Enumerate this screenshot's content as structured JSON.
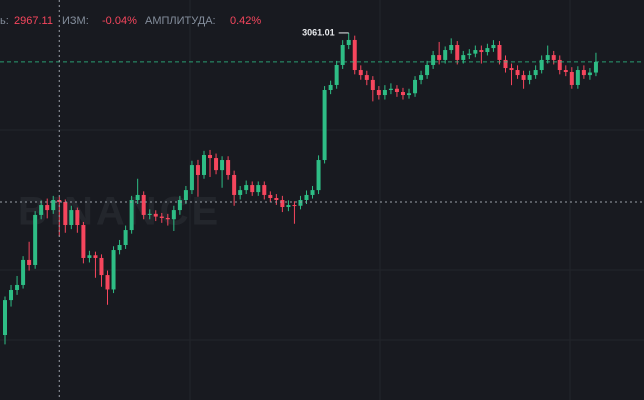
{
  "chart_data": {
    "type": "candlestick",
    "header": {
      "close_label": "ь:",
      "close": 2967.11,
      "change_label": "ИЗМ:",
      "change": "-0.04%",
      "amplitude_label": "АМПЛИТУДА:",
      "amplitude": "0.42%"
    },
    "watermark": "BINANCE",
    "up_color": "#2ebd85",
    "down_color": "#f6465d",
    "ylim": [
      2857.1,
      3079.3
    ],
    "open": [
      2893.2,
      2912.6,
      2918.2,
      2921.0,
      2934.9,
      2932.1,
      2959.9,
      2965.4,
      2962.6,
      2968.2,
      2967.1,
      2954.3,
      2962.6,
      2954.3,
      2936.0,
      2937.5,
      2936.0,
      2926.5,
      2918.5,
      2940.4,
      2943.2,
      2951.5,
      2968.2,
      2971.0,
      2959.9,
      2960.5,
      2959.0,
      2958.2,
      2957.5,
      2962.6,
      2968.2,
      2973.7,
      2987.6,
      2982.1,
      2993.2,
      2991.5,
      2984.8,
      2990.4,
      2982.1,
      2971.0,
      2973.7,
      2976.5,
      2972.6,
      2976.5,
      2971.0,
      2969.3,
      2968.2,
      2964.3,
      2965.4,
      2965.0,
      2968.2,
      2971.0,
      2973.7,
      2990.4,
      3029.3,
      3032.1,
      3043.2,
      3054.3,
      3057.1,
      3040.4,
      3037.6,
      3034.9,
      3029.3,
      3026.5,
      3029.3,
      3030.0,
      3028.2,
      3026.5,
      3027.5,
      3034.9,
      3037.6,
      3043.2,
      3048.7,
      3046.0,
      3051.5,
      3054.3,
      3046.0,
      3048.7,
      3049.5,
      3051.5,
      3050.4,
      3052.6,
      3054.3,
      3046.0,
      3041.5,
      3040.4,
      3037.6,
      3034.9,
      3037.6,
      3040.4,
      3046.0,
      3048.7,
      3046.0,
      3040.4,
      3039.3,
      3032.1,
      3040.4,
      3037.6,
      3039.0
    ],
    "close": [
      2912.6,
      2918.2,
      2921.0,
      2934.9,
      2932.1,
      2959.9,
      2965.4,
      2962.6,
      2968.2,
      2967.1,
      2954.3,
      2962.6,
      2954.3,
      2936.0,
      2937.5,
      2936.0,
      2926.5,
      2918.5,
      2940.4,
      2943.2,
      2951.5,
      2968.2,
      2971.0,
      2959.9,
      2960.5,
      2959.0,
      2958.2,
      2957.5,
      2962.6,
      2968.2,
      2973.7,
      2987.6,
      2982.1,
      2993.2,
      2991.5,
      2984.8,
      2990.4,
      2982.1,
      2971.0,
      2973.7,
      2976.5,
      2972.6,
      2976.5,
      2971.0,
      2969.3,
      2968.2,
      2964.3,
      2965.4,
      2965.0,
      2968.2,
      2971.0,
      2973.7,
      2990.4,
      3029.3,
      3032.1,
      3043.2,
      3054.3,
      3057.1,
      3040.4,
      3037.6,
      3034.9,
      3029.3,
      3026.5,
      3029.3,
      3030.0,
      3028.2,
      3026.5,
      3027.5,
      3034.9,
      3037.6,
      3043.2,
      3048.7,
      3046.0,
      3051.5,
      3054.3,
      3046.0,
      3048.7,
      3049.5,
      3051.5,
      3050.4,
      3052.6,
      3054.3,
      3046.0,
      3041.5,
      3040.4,
      3037.6,
      3034.9,
      3037.6,
      3040.4,
      3046.0,
      3048.7,
      3046.0,
      3040.4,
      3039.3,
      3032.1,
      3040.4,
      3037.6,
      3039.0,
      3044.9
    ],
    "high": [
      2914.6,
      2921.0,
      2926.0,
      2937.0,
      2945.0,
      2962.0,
      2968.0,
      2969.0,
      2970.5,
      2970.0,
      2968.5,
      2965.0,
      2964.0,
      2956.0,
      2940.0,
      2939.5,
      2938.0,
      2929.0,
      2942.5,
      2946.0,
      2954.0,
      2970.5,
      2980.0,
      2973.0,
      2963.0,
      2962.5,
      2961.0,
      2960.5,
      2965.0,
      2970.5,
      2976.0,
      2990.0,
      2990.5,
      2995.5,
      2996.0,
      2994.0,
      2992.5,
      2992.5,
      2984.5,
      2976.0,
      2979.0,
      2978.5,
      2978.5,
      2978.5,
      2973.0,
      2971.5,
      2970.5,
      2968.0,
      2967.5,
      2970.5,
      2973.5,
      2976.0,
      2993.0,
      3031.5,
      3034.5,
      3045.5,
      3057.0,
      3061.01,
      3059.5,
      3043.0,
      3040.0,
      3037.0,
      3031.5,
      3032.0,
      3033.0,
      3032.0,
      3030.5,
      3030.0,
      3037.0,
      3040.0,
      3045.5,
      3051.0,
      3056.0,
      3053.5,
      3058.0,
      3056.5,
      3051.0,
      3052.0,
      3054.0,
      3054.0,
      3055.0,
      3057.0,
      3056.5,
      3048.5,
      3044.0,
      3043.0,
      3040.0,
      3040.0,
      3043.0,
      3048.5,
      3054.0,
      3051.0,
      3048.5,
      3043.0,
      3042.0,
      3042.5,
      3043.0,
      3041.5,
      3050.0
    ],
    "low": [
      2888.0,
      2909.0,
      2915.5,
      2919.0,
      2929.0,
      2930.0,
      2957.5,
      2958.0,
      2960.5,
      2948.0,
      2950.0,
      2952.0,
      2950.0,
      2933.0,
      2933.5,
      2925.0,
      2920.0,
      2910.0,
      2916.5,
      2938.0,
      2941.0,
      2949.5,
      2966.0,
      2957.5,
      2957.5,
      2956.5,
      2955.5,
      2954.0,
      2951.0,
      2960.0,
      2966.0,
      2971.5,
      2970.0,
      2980.0,
      2981.0,
      2982.5,
      2975.0,
      2979.5,
      2965.0,
      2968.5,
      2971.5,
      2970.5,
      2970.5,
      2968.5,
      2967.0,
      2965.5,
      2961.5,
      2962.0,
      2955.0,
      2963.0,
      2966.0,
      2969.0,
      2971.5,
      2988.5,
      3027.0,
      3030.0,
      3041.0,
      3052.0,
      3038.0,
      3035.0,
      3032.0,
      3023.0,
      3024.0,
      3024.0,
      3027.0,
      3025.5,
      3024.0,
      3024.5,
      3025.5,
      3032.5,
      3035.5,
      3041.0,
      3043.5,
      3044.0,
      3049.5,
      3043.5,
      3044.0,
      3046.5,
      3047.5,
      3044.0,
      3048.5,
      3050.5,
      3043.5,
      3039.0,
      3032.0,
      3035.5,
      3030.0,
      3032.5,
      3035.5,
      3038.5,
      3044.0,
      3043.5,
      3038.0,
      3037.0,
      3030.0,
      3030.0,
      3035.5,
      3035.0,
      3037.0
    ]
  }
}
